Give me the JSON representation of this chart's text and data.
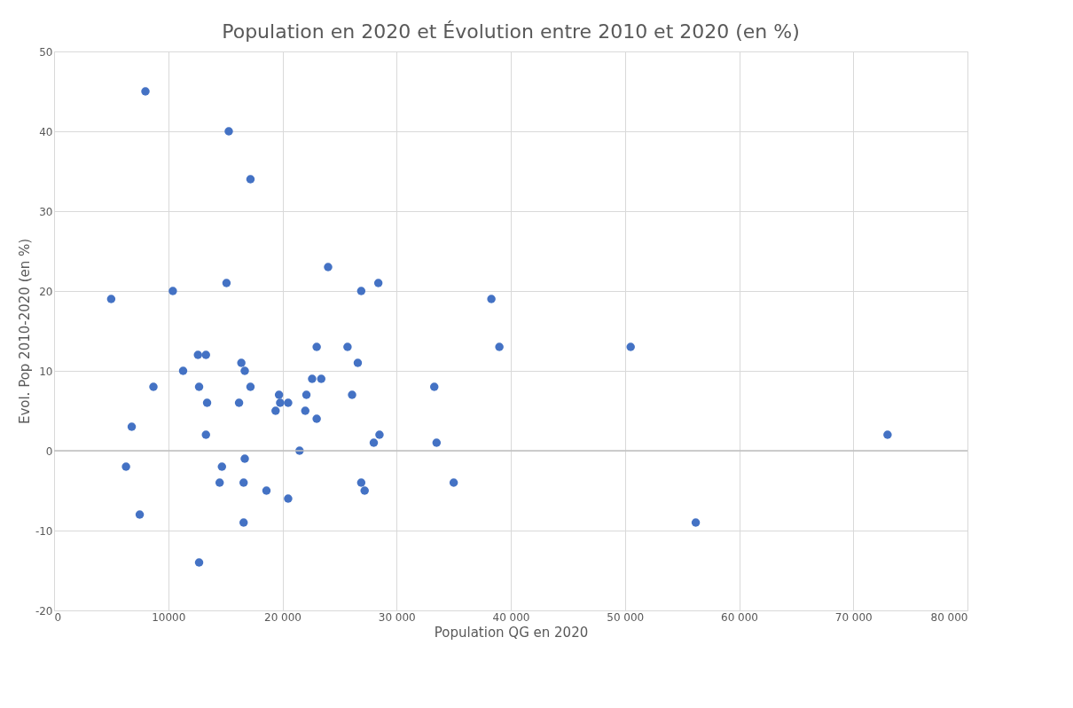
{
  "chart_data": {
    "type": "scatter",
    "title": "Population en 2020 et Évolution entre 2010 et 2020 (en %)",
    "xlabel": "Population QG en 2020",
    "ylabel": "Evol. Pop 2010-2020 (en %)",
    "x": [
      8000,
      15300,
      17200,
      5000,
      10400,
      15100,
      24000,
      26900,
      28400,
      23000,
      25700,
      26600,
      12600,
      13300,
      11300,
      16400,
      16700,
      8700,
      12700,
      17200,
      13400,
      16200,
      19700,
      19800,
      19400,
      20500,
      22600,
      23400,
      22100,
      22000,
      23000,
      26100,
      6800,
      13300,
      28000,
      28500,
      21500,
      16700,
      6300,
      14700,
      14500,
      16600,
      18600,
      20500,
      26900,
      27200,
      7500,
      16600,
      12700,
      33300,
      33500,
      35000,
      38300,
      39000,
      50500,
      56200,
      73000
    ],
    "series": [
      {
        "color": "#4472c4",
        "values": [
          45,
          40,
          34,
          19,
          20,
          21,
          23,
          20,
          21,
          13,
          13,
          11,
          12,
          12,
          10,
          11,
          10,
          8,
          8,
          8,
          6,
          6,
          7,
          6,
          5,
          6,
          9,
          9,
          7,
          5,
          4,
          7,
          3,
          2,
          1,
          2,
          0,
          -1,
          -2,
          -2,
          -4,
          -4,
          -5,
          -6,
          -4,
          -5,
          -8,
          -9,
          -14,
          8,
          1,
          -4,
          19,
          13,
          13,
          -9,
          2
        ]
      }
    ],
    "xlim": [
      0,
      80000
    ],
    "xticks": [
      {
        "value": 0,
        "label": "0"
      },
      {
        "value": 10000,
        "label": "10000"
      },
      {
        "value": 20000,
        "label": "20 000"
      },
      {
        "value": 30000,
        "label": "30 000"
      },
      {
        "value": 40000,
        "label": "40 000"
      },
      {
        "value": 50000,
        "label": "50 000"
      },
      {
        "value": 60000,
        "label": "60 000"
      },
      {
        "value": 70000,
        "label": "70 000"
      },
      {
        "value": 80000,
        "label": "80 000"
      }
    ],
    "ylim": [
      -20,
      50
    ],
    "yticks": [
      -20,
      -10,
      0,
      10,
      20,
      30,
      40,
      50
    ],
    "grid": true,
    "marker": "circle",
    "legend": false
  }
}
